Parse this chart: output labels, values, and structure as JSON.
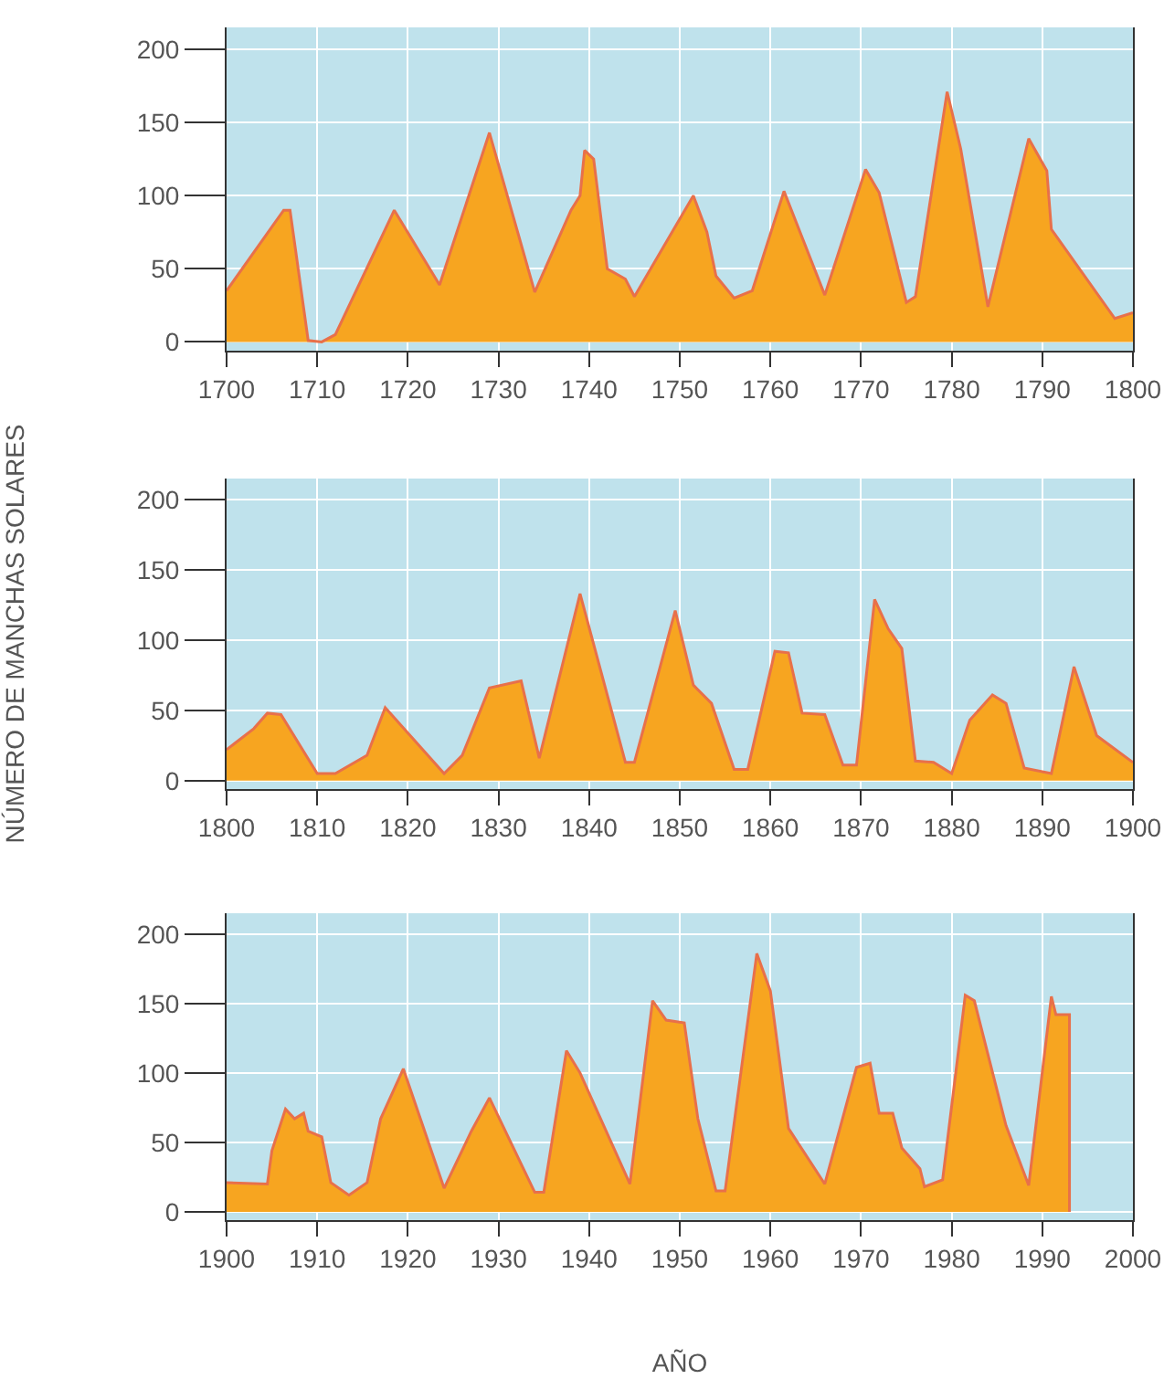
{
  "chart_data": [
    {
      "type": "area",
      "x": [
        1700,
        1706.3,
        1707,
        1709,
        1710.5,
        1712,
        1718.5,
        1723.5,
        1729,
        1734,
        1738,
        1739,
        1739.5,
        1740.5,
        1742,
        1744,
        1745,
        1751.5,
        1753,
        1754,
        1756,
        1758,
        1761.5,
        1766,
        1770.5,
        1772,
        1775,
        1776,
        1779.5,
        1781,
        1784,
        1788.5,
        1790.5,
        1791,
        1798,
        1800
      ],
      "series": [
        {
          "color": "#f7a520",
          "values": [
            35,
            90,
            90,
            1,
            0,
            5,
            90,
            39,
            143,
            34,
            90,
            100,
            131,
            125,
            50,
            43,
            31,
            100,
            75,
            45,
            30,
            35,
            103,
            32,
            118,
            102,
            27,
            31,
            171,
            132,
            24,
            139,
            117,
            77,
            16,
            20
          ]
        }
      ],
      "xlim": [
        1700,
        1800
      ],
      "xticks": [
        1700,
        1710,
        1720,
        1730,
        1740,
        1750,
        1760,
        1770,
        1780,
        1790,
        1800
      ],
      "ylim": [
        -6,
        215
      ],
      "yticks": [
        0,
        50,
        100,
        150,
        200
      ],
      "grid": true,
      "marker": "none",
      "line_style": "solid"
    },
    {
      "type": "area",
      "ylabel": "NÚMERO DE MANCHAS SOLARES",
      "x": [
        1800,
        1803,
        1804.5,
        1806,
        1810,
        1812,
        1815.5,
        1817.5,
        1824,
        1826,
        1829,
        1832.5,
        1834.5,
        1839,
        1844,
        1845,
        1849.5,
        1851.5,
        1853.5,
        1856,
        1857.5,
        1860.5,
        1862,
        1863.5,
        1866,
        1868,
        1869.5,
        1871.5,
        1873,
        1874.5,
        1876,
        1878,
        1880,
        1882,
        1884.5,
        1886,
        1888,
        1891,
        1893.5,
        1896,
        1900
      ],
      "series": [
        {
          "color": "#f7a520",
          "values": [
            22,
            37,
            48,
            47,
            5,
            5,
            18,
            52,
            5,
            18,
            66,
            71,
            16,
            133,
            13,
            13,
            121,
            68,
            55,
            8,
            8,
            92,
            91,
            48,
            47,
            11,
            11,
            129,
            108,
            94,
            14,
            13,
            5,
            43,
            61,
            55,
            9,
            5,
            81,
            32,
            13
          ]
        }
      ],
      "xlim": [
        1800,
        1900
      ],
      "xticks": [
        1800,
        1810,
        1820,
        1830,
        1840,
        1850,
        1860,
        1870,
        1880,
        1890,
        1900
      ],
      "ylim": [
        -6,
        215
      ],
      "yticks": [
        0,
        50,
        100,
        150,
        200
      ],
      "grid": true,
      "marker": "none",
      "line_style": "solid"
    },
    {
      "type": "area",
      "xlabel": "AÑO",
      "x": [
        1900,
        1904.5,
        1905,
        1906.5,
        1907.5,
        1908.5,
        1909,
        1910.5,
        1911.5,
        1913.5,
        1915.5,
        1917,
        1919.5,
        1924,
        1927,
        1929,
        1934,
        1935,
        1937.5,
        1939,
        1944.5,
        1947,
        1948.5,
        1950.5,
        1952,
        1954,
        1955,
        1958.5,
        1960,
        1962,
        1966,
        1969.5,
        1971,
        1972,
        1973.5,
        1974.5,
        1976.5,
        1977,
        1979,
        1981.5,
        1982.5,
        1986,
        1988.5,
        1991,
        1991.5,
        1993,
        1993
      ],
      "series": [
        {
          "color": "#f7a520",
          "values": [
            21,
            20,
            44,
            74,
            67,
            71,
            58,
            54,
            21,
            12,
            21,
            67,
            103,
            17,
            58,
            82,
            14,
            14,
            116,
            100,
            20,
            152,
            138,
            136,
            67,
            15,
            15,
            186,
            159,
            60,
            20,
            104,
            107,
            71,
            71,
            46,
            31,
            18,
            23,
            156,
            152,
            62,
            19,
            155,
            142,
            142,
            0
          ]
        }
      ],
      "xlim": [
        1900,
        2000
      ],
      "xticks": [
        1900,
        1910,
        1920,
        1930,
        1940,
        1950,
        1960,
        1970,
        1980,
        1990,
        2000
      ],
      "ylim": [
        -6,
        215
      ],
      "yticks": [
        0,
        50,
        100,
        150,
        200
      ],
      "grid": true,
      "marker": "none",
      "line_style": "solid"
    }
  ]
}
